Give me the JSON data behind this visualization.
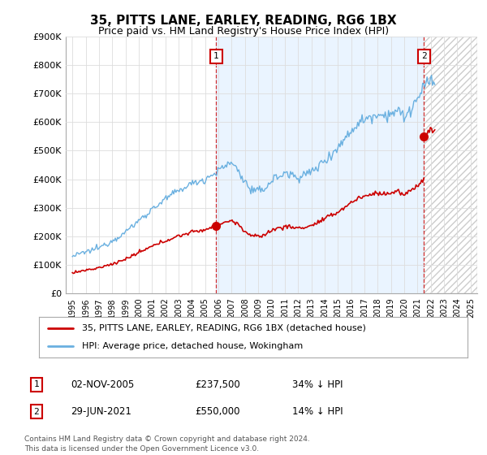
{
  "title": "35, PITTS LANE, EARLEY, READING, RG6 1BX",
  "subtitle": "Price paid vs. HM Land Registry's House Price Index (HPI)",
  "hpi_color": "#6ab0e0",
  "price_color": "#cc0000",
  "dashed_color": "#cc0000",
  "fill_color": "#ddeeff",
  "ylim": [
    0,
    900000
  ],
  "yticks": [
    0,
    100000,
    200000,
    300000,
    400000,
    500000,
    600000,
    700000,
    800000,
    900000
  ],
  "ytick_labels": [
    "£0",
    "£100K",
    "£200K",
    "£300K",
    "£400K",
    "£500K",
    "£600K",
    "£700K",
    "£800K",
    "£900K"
  ],
  "sale1_year": 2005.84,
  "sale1_price": 237500,
  "sale1_label": "1",
  "sale2_year": 2021.49,
  "sale2_price": 550000,
  "sale2_label": "2",
  "xmin": 1994.5,
  "xmax": 2025.5,
  "data_end_year": 2022.3,
  "legend_line1": "35, PITTS LANE, EARLEY, READING, RG6 1BX (detached house)",
  "legend_line2": "HPI: Average price, detached house, Wokingham",
  "table_row1": [
    "1",
    "02-NOV-2005",
    "£237,500",
    "34% ↓ HPI"
  ],
  "table_row2": [
    "2",
    "29-JUN-2021",
    "£550,000",
    "14% ↓ HPI"
  ],
  "footnote": "Contains HM Land Registry data © Crown copyright and database right 2024.\nThis data is licensed under the Open Government Licence v3.0.",
  "bg_color": "#ffffff",
  "grid_color": "#dddddd"
}
